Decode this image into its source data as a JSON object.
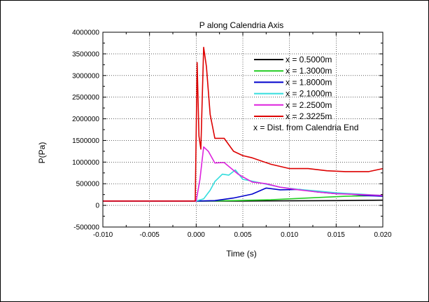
{
  "chart_data": {
    "type": "line",
    "title": "P along Calendria Axis",
    "xlabel": "Time (s)",
    "ylabel": "P(Pa)",
    "xlim": [
      -0.01,
      0.02
    ],
    "ylim": [
      -500000,
      4000000
    ],
    "x_ticks": [
      "-0.010",
      "-0.005",
      "0.000",
      "0.005",
      "0.010",
      "0.015",
      "0.020"
    ],
    "x_tick_values": [
      -0.01,
      -0.005,
      0.0,
      0.005,
      0.01,
      0.015,
      0.02
    ],
    "y_ticks": [
      "-500000",
      "0",
      "500000",
      "1000000",
      "1500000",
      "2000000",
      "2500000",
      "3000000",
      "3500000",
      "4000000"
    ],
    "y_tick_values": [
      -500000,
      0,
      500000,
      1000000,
      1500000,
      2000000,
      2500000,
      3000000,
      3500000,
      4000000
    ],
    "grid": true,
    "legend_position": "top-right",
    "legend_note": "x = Dist. from Calendria End",
    "series": [
      {
        "name": "x = 0.5000m",
        "color": "#000000",
        "x": [
          -0.01,
          0.0,
          0.005,
          0.01,
          0.015,
          0.02
        ],
        "y": [
          100000,
          100000,
          100000,
          105000,
          110000,
          120000
        ]
      },
      {
        "name": "x = 1.3000m",
        "color": "#22cc22",
        "x": [
          -0.01,
          0.0,
          0.004,
          0.008,
          0.012,
          0.016,
          0.02
        ],
        "y": [
          100000,
          100000,
          110000,
          130000,
          170000,
          210000,
          230000
        ]
      },
      {
        "name": "x = 1.8000m",
        "color": "#0000cc",
        "x": [
          -0.01,
          0.0,
          0.002,
          0.004,
          0.006,
          0.0075,
          0.009,
          0.011,
          0.013,
          0.015,
          0.016,
          0.018,
          0.02
        ],
        "y": [
          100000,
          100000,
          110000,
          170000,
          260000,
          400000,
          360000,
          370000,
          310000,
          270000,
          270000,
          230000,
          210000
        ]
      },
      {
        "name": "x = 2.1000m",
        "color": "#33dddd",
        "x": [
          -0.01,
          0.0,
          0.0008,
          0.0015,
          0.002,
          0.0028,
          0.0035,
          0.0042,
          0.005,
          0.006,
          0.0075,
          0.009,
          0.011,
          0.013,
          0.015,
          0.02
        ],
        "y": [
          100000,
          100000,
          150000,
          350000,
          550000,
          720000,
          700000,
          820000,
          600000,
          560000,
          490000,
          420000,
          370000,
          330000,
          290000,
          230000
        ]
      },
      {
        "name": "x = 2.2500m",
        "color": "#dd22dd",
        "x": [
          -0.01,
          0.0,
          0.0004,
          0.0008,
          0.0013,
          0.002,
          0.003,
          0.0045,
          0.006,
          0.0075,
          0.009,
          0.011,
          0.013,
          0.015,
          0.02
        ],
        "y": [
          100000,
          100000,
          600000,
          1350000,
          1250000,
          980000,
          990000,
          720000,
          540000,
          500000,
          420000,
          360000,
          310000,
          270000,
          230000
        ]
      },
      {
        "name": "x = 2.3225m",
        "color": "#dd0000",
        "x": [
          -0.01,
          -0.0001,
          0.0001,
          0.0003,
          0.0005,
          0.0008,
          0.0011,
          0.0015,
          0.002,
          0.003,
          0.004,
          0.005,
          0.006,
          0.008,
          0.01,
          0.012,
          0.014,
          0.016,
          0.0185,
          0.02
        ],
        "y": [
          100000,
          100000,
          3300000,
          1600000,
          1300000,
          3650000,
          3200000,
          2100000,
          1550000,
          1550000,
          1250000,
          1150000,
          1100000,
          950000,
          850000,
          850000,
          800000,
          780000,
          780000,
          850000
        ]
      }
    ]
  }
}
